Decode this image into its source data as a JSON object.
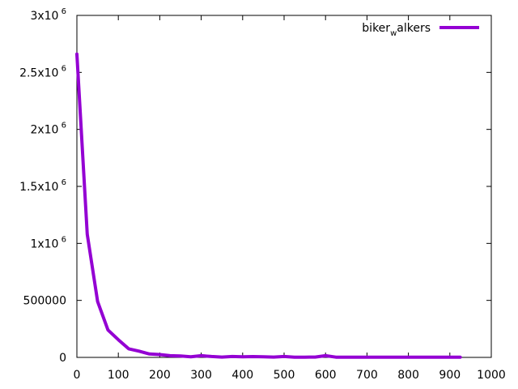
{
  "chart_data": {
    "type": "line",
    "title": "",
    "xlabel": "",
    "ylabel": "",
    "xlim": [
      0,
      1000
    ],
    "ylim": [
      0,
      3000000
    ],
    "grid": false,
    "legend_position": "top-right",
    "x_ticks": [
      {
        "value": 0,
        "label": "0"
      },
      {
        "value": 100,
        "label": "100"
      },
      {
        "value": 200,
        "label": "200"
      },
      {
        "value": 300,
        "label": "300"
      },
      {
        "value": 400,
        "label": "400"
      },
      {
        "value": 500,
        "label": "500"
      },
      {
        "value": 600,
        "label": "600"
      },
      {
        "value": 700,
        "label": "700"
      },
      {
        "value": 800,
        "label": "800"
      },
      {
        "value": 900,
        "label": "900"
      },
      {
        "value": 1000,
        "label": "1000"
      }
    ],
    "y_ticks": [
      {
        "value": 0,
        "base": "0",
        "exp": ""
      },
      {
        "value": 500000,
        "base": "500000",
        "exp": ""
      },
      {
        "value": 1000000,
        "base": "1x10",
        "exp": "6"
      },
      {
        "value": 1500000,
        "base": "1.5x10",
        "exp": "6"
      },
      {
        "value": 2000000,
        "base": "2x10",
        "exp": "6"
      },
      {
        "value": 2500000,
        "base": "2.5x10",
        "exp": "6"
      },
      {
        "value": 3000000,
        "base": "3x10",
        "exp": "6"
      }
    ],
    "legend": {
      "base": "biker",
      "sub": "w",
      "rest": "alkers"
    },
    "series": [
      {
        "name": "biker_walkers",
        "color": "#9400d3",
        "x": [
          0,
          25,
          50,
          75,
          100,
          125,
          150,
          175,
          200,
          225,
          250,
          275,
          300,
          325,
          350,
          375,
          400,
          425,
          450,
          475,
          500,
          525,
          550,
          575,
          600,
          625,
          650,
          675,
          700,
          725,
          750,
          775,
          800,
          825,
          850,
          875,
          900,
          925
        ],
        "y": [
          2660000,
          1080000,
          490000,
          240000,
          155000,
          75000,
          55000,
          30000,
          25000,
          15000,
          12000,
          5000,
          15000,
          8000,
          3000,
          8000,
          5000,
          7000,
          6000,
          3000,
          8000,
          2000,
          2000,
          3000,
          15000,
          2000,
          2000,
          1500,
          1500,
          1500,
          1500,
          1500,
          1500,
          1500,
          1500,
          1500,
          1500,
          1500
        ]
      }
    ]
  }
}
